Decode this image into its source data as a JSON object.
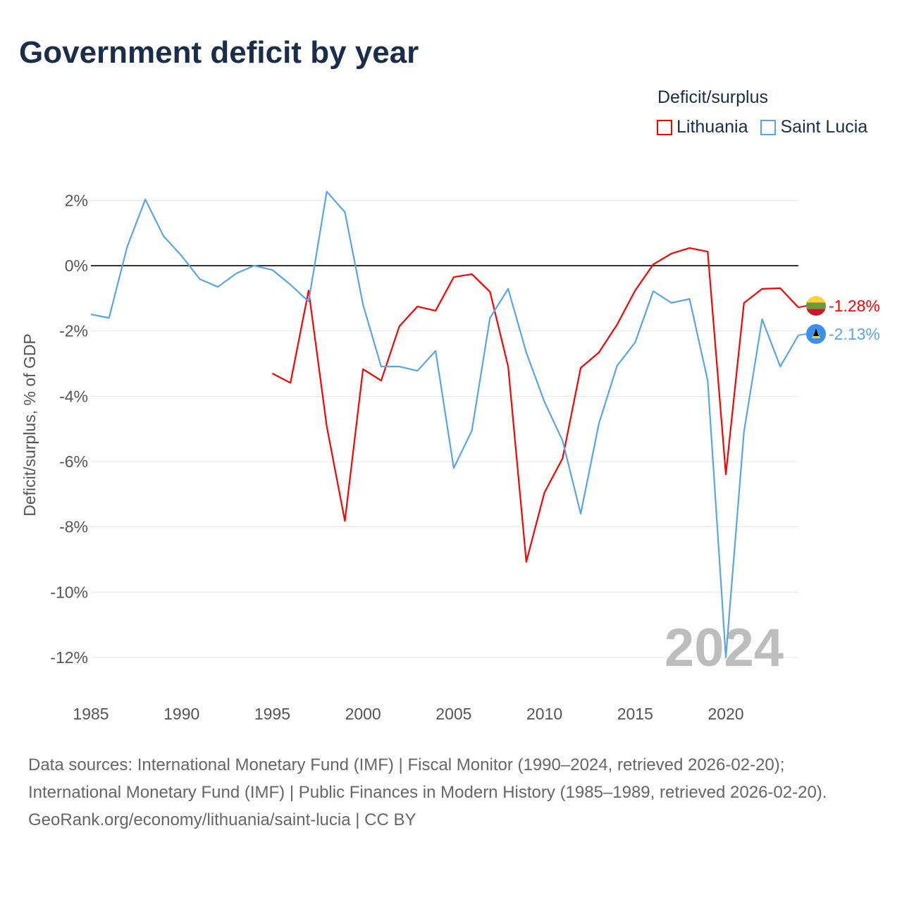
{
  "title": "Government deficit by year",
  "legend": {
    "title": "Deficit/surplus",
    "items": [
      {
        "name": "Lithuania",
        "color": "#ff0000"
      },
      {
        "name": "Saint Lucia",
        "color": "#5aa5e6"
      }
    ]
  },
  "footer": {
    "sources": "Data sources: International Monetary Fund (IMF) | Fiscal Monitor (1990–2024, retrieved 2026-02-20); International Monetary Fund (IMF) | Public Finances in Modern History (1985–1989, retrieved 2026-02-20).",
    "link": "GeoRank.org/economy/lithuania/saint-lucia | CC BY"
  },
  "chart_data": {
    "type": "line",
    "title": "Government deficit by year",
    "ylabel": "Deficit/surplus, % of GDP",
    "xlim": [
      1985,
      2024
    ],
    "ylim": [
      -13,
      2.5
    ],
    "x_ticks": [
      1985,
      1990,
      1995,
      2000,
      2005,
      2010,
      2015,
      2020
    ],
    "y_ticks": [
      2,
      0,
      -2,
      -4,
      -6,
      -8,
      -10,
      -12
    ],
    "y_tick_labels": [
      "2%",
      "0%",
      "-2%",
      "-4%",
      "-6%",
      "-8%",
      "-10%",
      "-12%"
    ],
    "year_watermark": "2024",
    "series": [
      {
        "name": "Lithuania",
        "color": "#ff0000",
        "end_label": "-1.28%",
        "start": 1995,
        "values": [
          -3.3,
          -3.59,
          -0.76,
          -4.92,
          -7.82,
          -3.17,
          -3.52,
          -1.86,
          -1.25,
          -1.38,
          -0.35,
          -0.26,
          -0.8,
          -3.09,
          -9.07,
          -6.95,
          -5.9,
          -3.13,
          -2.66,
          -1.81,
          -0.76,
          0.04,
          0.37,
          0.54,
          0.43,
          -6.39,
          -1.14,
          -0.71,
          -0.69,
          -1.28
        ]
      },
      {
        "name": "Saint Lucia",
        "color": "#5aa5e6",
        "end_label": "-2.13%",
        "start": 1985,
        "values": [
          -1.49,
          -1.6,
          0.58,
          2.03,
          0.91,
          0.3,
          -0.41,
          -0.65,
          -0.24,
          0,
          -0.13,
          -0.58,
          -1.1,
          2.27,
          1.64,
          -1.19,
          -3.09,
          -3.09,
          -3.22,
          -2.61,
          -6.2,
          -5.05,
          -1.6,
          -0.71,
          -2.66,
          -4.17,
          -5.36,
          -7.6,
          -4.84,
          -3.07,
          -2.35,
          -0.78,
          -1.14,
          -1.02,
          -3.52,
          -12.0,
          -5.08,
          -1.64,
          -3.09,
          -2.13
        ]
      }
    ]
  }
}
